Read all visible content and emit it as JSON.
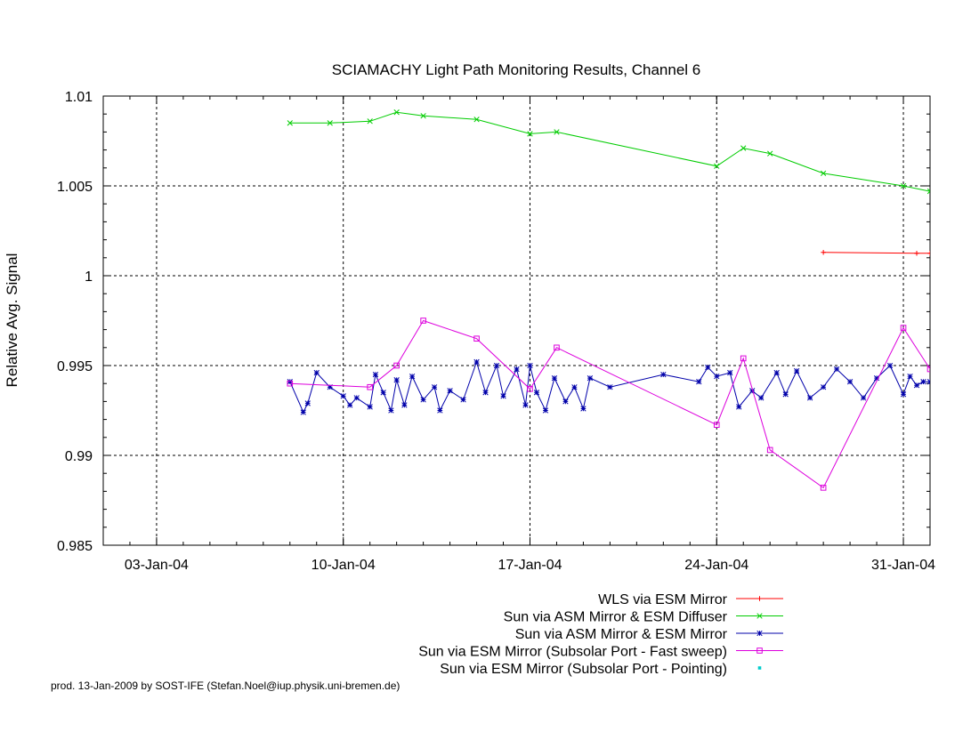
{
  "chart_data": {
    "type": "line",
    "title": "SCIAMACHY Light Path Monitoring Results, Channel 6",
    "xlabel": "",
    "ylabel": "Relative Avg. Signal",
    "x_axis": {
      "type": "date",
      "range": [
        "2004-01-01",
        "2004-02-01"
      ],
      "ticks": [
        "03-Jan-04",
        "10-Jan-04",
        "17-Jan-04",
        "24-Jan-04",
        "31-Jan-04"
      ]
    },
    "ylim": [
      0.985,
      1.01
    ],
    "yticks": [
      "0.985",
      "0.99",
      "0.995",
      "1",
      "1.005",
      "1.01"
    ],
    "grid": true,
    "legend_position": "bottom-right",
    "series": [
      {
        "name": "WLS via ESM Mirror",
        "color": "#ff0000",
        "marker": "plus",
        "points": [
          [
            "2004-01-28",
            1.0013
          ],
          [
            "2004-01-31 12:00",
            1.00125
          ],
          [
            "2004-02-01",
            1.00125
          ]
        ]
      },
      {
        "name": "Sun via ASM Mirror & ESM Diffuser",
        "color": "#00cc00",
        "marker": "x",
        "points": [
          [
            "2004-01-08",
            1.0085
          ],
          [
            "2004-01-09 12:00",
            1.0085
          ],
          [
            "2004-01-11",
            1.0086
          ],
          [
            "2004-01-12",
            1.0091
          ],
          [
            "2004-01-13",
            1.0089
          ],
          [
            "2004-01-15",
            1.0087
          ],
          [
            "2004-01-17",
            1.0079
          ],
          [
            "2004-01-18",
            1.008
          ],
          [
            "2004-01-24",
            1.0061
          ],
          [
            "2004-01-25",
            1.0071
          ],
          [
            "2004-01-26",
            1.0068
          ],
          [
            "2004-01-28",
            1.0057
          ],
          [
            "2004-01-31",
            1.005
          ],
          [
            "2004-02-01",
            1.0047
          ]
        ]
      },
      {
        "name": "Sun via ASM Mirror & ESM Mirror",
        "color": "#0000aa",
        "marker": "star",
        "points": [
          [
            "2004-01-08",
            0.9941
          ],
          [
            "2004-01-08 12:00",
            0.9924
          ],
          [
            "2004-01-08 16:00",
            0.9929
          ],
          [
            "2004-01-09",
            0.9946
          ],
          [
            "2004-01-09 12:00",
            0.9938
          ],
          [
            "2004-01-10",
            0.9933
          ],
          [
            "2004-01-10 06:00",
            0.9928
          ],
          [
            "2004-01-10 12:00",
            0.9932
          ],
          [
            "2004-01-11",
            0.9927
          ],
          [
            "2004-01-11 05:00",
            0.9945
          ],
          [
            "2004-01-11 12:00",
            0.9935
          ],
          [
            "2004-01-11 19:00",
            0.9925
          ],
          [
            "2004-01-12",
            0.9942
          ],
          [
            "2004-01-12 07:00",
            0.9928
          ],
          [
            "2004-01-12 14:00",
            0.9944
          ],
          [
            "2004-01-13",
            0.9931
          ],
          [
            "2004-01-13 10:00",
            0.9938
          ],
          [
            "2004-01-13 15:00",
            0.9925
          ],
          [
            "2004-01-14",
            0.9936
          ],
          [
            "2004-01-14 12:00",
            0.9931
          ],
          [
            "2004-01-15",
            0.9952
          ],
          [
            "2004-01-15 08:00",
            0.9935
          ],
          [
            "2004-01-15 18:00",
            0.995
          ],
          [
            "2004-01-16",
            0.9933
          ],
          [
            "2004-01-16 12:00",
            0.9948
          ],
          [
            "2004-01-16 20:00",
            0.9928
          ],
          [
            "2004-01-17",
            0.995
          ],
          [
            "2004-01-17 06:00",
            0.9935
          ],
          [
            "2004-01-17 14:00",
            0.9925
          ],
          [
            "2004-01-17 22:00",
            0.9943
          ],
          [
            "2004-01-18 08:00",
            0.993
          ],
          [
            "2004-01-18 16:00",
            0.9938
          ],
          [
            "2004-01-19",
            0.9926
          ],
          [
            "2004-01-19 06:00",
            0.9943
          ],
          [
            "2004-01-20",
            0.9938
          ],
          [
            "2004-01-22",
            0.9945
          ],
          [
            "2004-01-23 08:00",
            0.9941
          ],
          [
            "2004-01-23 16:00",
            0.9949
          ],
          [
            "2004-01-24",
            0.9944
          ],
          [
            "2004-01-24 12:00",
            0.9946
          ],
          [
            "2004-01-24 20:00",
            0.9927
          ],
          [
            "2004-01-25 08:00",
            0.9936
          ],
          [
            "2004-01-25 16:00",
            0.9932
          ],
          [
            "2004-01-26 06:00",
            0.9946
          ],
          [
            "2004-01-26 14:00",
            0.9934
          ],
          [
            "2004-01-27",
            0.9947
          ],
          [
            "2004-01-27 12:00",
            0.9932
          ],
          [
            "2004-01-28",
            0.9938
          ],
          [
            "2004-01-28 12:00",
            0.9948
          ],
          [
            "2004-01-29",
            0.9941
          ],
          [
            "2004-01-29 12:00",
            0.9932
          ],
          [
            "2004-01-30",
            0.9943
          ],
          [
            "2004-01-30 12:00",
            0.995
          ],
          [
            "2004-01-31",
            0.9934
          ],
          [
            "2004-01-31 06:00",
            0.9944
          ],
          [
            "2004-01-31 12:00",
            0.9939
          ],
          [
            "2004-01-31 18:00",
            0.9941
          ],
          [
            "2004-02-01",
            0.9941
          ]
        ]
      },
      {
        "name": "Sun via ESM Mirror (Subsolar Port - Fast sweep)",
        "color": "#dd00dd",
        "marker": "square",
        "points": [
          [
            "2004-01-08",
            0.994
          ],
          [
            "2004-01-11",
            0.9938
          ],
          [
            "2004-01-12",
            0.995
          ],
          [
            "2004-01-13",
            0.9975
          ],
          [
            "2004-01-15",
            0.9965
          ],
          [
            "2004-01-17",
            0.9937
          ],
          [
            "2004-01-18",
            0.996
          ],
          [
            "2004-01-24",
            0.9917
          ],
          [
            "2004-01-25",
            0.9954
          ],
          [
            "2004-01-26",
            0.9903
          ],
          [
            "2004-01-28",
            0.9882
          ],
          [
            "2004-01-31",
            0.9971
          ],
          [
            "2004-02-01",
            0.9948
          ]
        ]
      },
      {
        "name": "Sun via ESM Mirror (Subsolar Port - Pointing)",
        "color": "#00cccc",
        "marker": "dot",
        "points": []
      }
    ]
  },
  "footer": {
    "text": "prod. 13-Jan-2009 by SOST-IFE (Stefan.Noel@iup.physik.uni-bremen.de)"
  }
}
